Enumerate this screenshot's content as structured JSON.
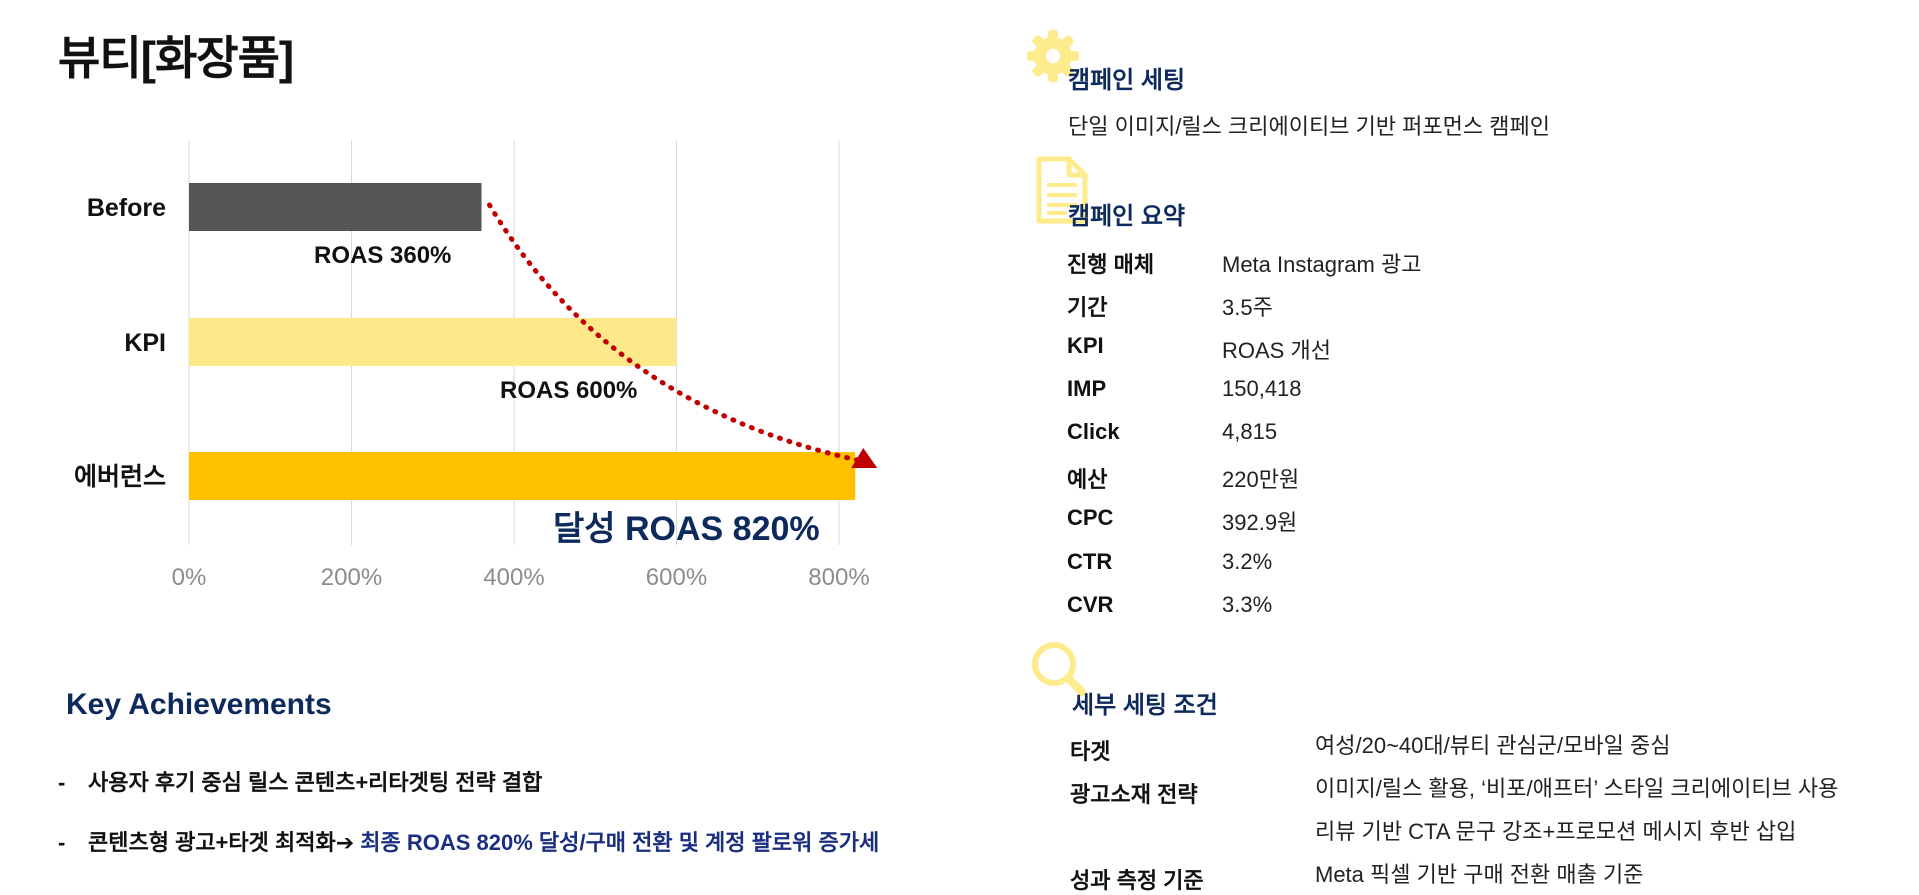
{
  "title": "뷰티[화장품]",
  "chart_data": {
    "type": "bar",
    "orientation": "horizontal",
    "categories": [
      "Before",
      "KPI",
      "에버런스"
    ],
    "values": [
      360,
      600,
      820
    ],
    "bar_labels": [
      "ROAS 360%",
      "ROAS 600%",
      "달성 ROAS 820%"
    ],
    "xlim": [
      0,
      800
    ],
    "xticks": [
      "0%",
      "200%",
      "400%",
      "600%",
      "800%"
    ],
    "grid": true,
    "colors": [
      "#555555",
      "#fde98a",
      "#ffc000"
    ],
    "trend_arrow_color": "#c00000"
  },
  "key_achievements": {
    "title": "Key Achievements",
    "items": [
      {
        "dash": "-",
        "text": "사용자 후기 중심 릴스 콘텐츠+리타겟팅 전략 결합",
        "highlight": ""
      },
      {
        "dash": "-",
        "text": "콘텐츠형 광고+타겟 최적화➔",
        "highlight": " 최종 ROAS 820% 달성/구매 전환 및 계정 팔로워 증가세"
      }
    ]
  },
  "campaign_setting": {
    "icon": "gear-icon",
    "title": "캠페인 세팅",
    "text": "단일 이미지/릴스 크리에이티브 기반 퍼포먼스 캠페인"
  },
  "campaign_summary": {
    "icon": "document-icon",
    "title": "캠페인 요약",
    "rows": [
      {
        "label": "진행 매체",
        "value": "Meta Instagram 광고"
      },
      {
        "label": "기간",
        "value": "3.5주"
      },
      {
        "label": "KPI",
        "value": "ROAS 개선"
      },
      {
        "label": "IMP",
        "value": "150,418"
      },
      {
        "label": "Click",
        "value": "4,815"
      },
      {
        "label": "예산",
        "value": "220만원"
      },
      {
        "label": "CPC",
        "value": "392.9원"
      },
      {
        "label": "CTR",
        "value": "3.2%"
      },
      {
        "label": "CVR",
        "value": "3.3%"
      }
    ]
  },
  "detail_setting": {
    "icon": "magnifier-icon",
    "title": "세부 세팅 조건",
    "rows": [
      {
        "label": "타겟",
        "value": "여성/20~40대/뷰티 관심군/모바일 중심"
      },
      {
        "label": "광고소재 전략",
        "value": "이미지/릴스 활용, ‘비포/애프터’ 스타일 크리에이티브 사용"
      },
      {
        "label": "",
        "value": "리뷰 기반 CTA 문구 강조+프로모션 메시지 후반 삽입"
      },
      {
        "label": "성과 측정 기준",
        "value": "Meta 픽셀 기반 구매 전환 매출 기준"
      }
    ]
  }
}
